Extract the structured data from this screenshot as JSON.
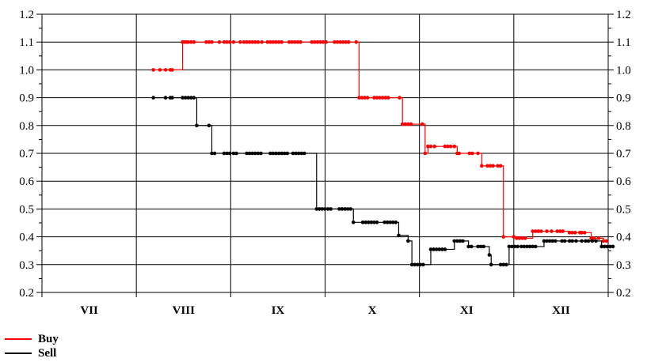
{
  "chart_data": {
    "type": "line",
    "title": "",
    "xlabel": "",
    "ylabel": "",
    "ylim": [
      0.2,
      1.2
    ],
    "yticks": [
      "0.2",
      "0.3",
      "0.4",
      "0.5",
      "0.6",
      "0.7",
      "0.8",
      "0.9",
      "1.0",
      "1.1",
      "1.2"
    ],
    "xlim": [
      0,
      6
    ],
    "categories": [
      "VII",
      "VIII",
      "IX",
      "X",
      "XI",
      "XII"
    ],
    "grid": true,
    "legend_position": "bottom-left",
    "series": [
      {
        "name": "Buy",
        "color": "#ff0000",
        "points": [
          [
            1.18,
            1.0
          ],
          [
            1.25,
            1.0
          ],
          [
            1.31,
            1.0
          ],
          [
            1.36,
            1.0
          ],
          [
            1.38,
            1.0
          ],
          [
            1.49,
            1.1
          ],
          [
            1.51,
            1.1
          ],
          [
            1.53,
            1.1
          ],
          [
            1.55,
            1.1
          ],
          [
            1.58,
            1.1
          ],
          [
            1.61,
            1.1
          ],
          [
            1.74,
            1.1
          ],
          [
            1.77,
            1.1
          ],
          [
            1.8,
            1.1
          ],
          [
            1.88,
            1.1
          ],
          [
            1.93,
            1.1
          ],
          [
            1.96,
            1.1
          ],
          [
            1.99,
            1.1
          ],
          [
            2.03,
            1.1
          ],
          [
            2.1,
            1.1
          ],
          [
            2.14,
            1.1
          ],
          [
            2.17,
            1.1
          ],
          [
            2.2,
            1.1
          ],
          [
            2.23,
            1.1
          ],
          [
            2.26,
            1.1
          ],
          [
            2.29,
            1.1
          ],
          [
            2.33,
            1.1
          ],
          [
            2.39,
            1.1
          ],
          [
            2.42,
            1.1
          ],
          [
            2.45,
            1.1
          ],
          [
            2.48,
            1.1
          ],
          [
            2.51,
            1.1
          ],
          [
            2.54,
            1.1
          ],
          [
            2.62,
            1.1
          ],
          [
            2.65,
            1.1
          ],
          [
            2.68,
            1.1
          ],
          [
            2.71,
            1.1
          ],
          [
            2.74,
            1.1
          ],
          [
            2.86,
            1.1
          ],
          [
            2.89,
            1.1
          ],
          [
            2.92,
            1.1
          ],
          [
            2.95,
            1.1
          ],
          [
            2.98,
            1.1
          ],
          [
            3.01,
            1.1
          ],
          [
            3.1,
            1.1
          ],
          [
            3.13,
            1.1
          ],
          [
            3.16,
            1.1
          ],
          [
            3.19,
            1.1
          ],
          [
            3.22,
            1.1
          ],
          [
            3.25,
            1.1
          ],
          [
            3.33,
            1.1
          ],
          [
            3.36,
            0.9
          ],
          [
            3.39,
            0.9
          ],
          [
            3.42,
            0.9
          ],
          [
            3.45,
            0.9
          ],
          [
            3.52,
            0.9
          ],
          [
            3.55,
            0.9
          ],
          [
            3.58,
            0.9
          ],
          [
            3.61,
            0.9
          ],
          [
            3.64,
            0.9
          ],
          [
            3.67,
            0.9
          ],
          [
            3.79,
            0.9
          ],
          [
            3.82,
            0.805
          ],
          [
            3.85,
            0.805
          ],
          [
            3.88,
            0.805
          ],
          [
            3.91,
            0.805
          ],
          [
            4.03,
            0.805
          ],
          [
            4.06,
            0.7
          ],
          [
            4.09,
            0.725
          ],
          [
            4.12,
            0.725
          ],
          [
            4.16,
            0.725
          ],
          [
            4.27,
            0.725
          ],
          [
            4.3,
            0.725
          ],
          [
            4.33,
            0.725
          ],
          [
            4.37,
            0.725
          ],
          [
            4.4,
            0.7
          ],
          [
            4.42,
            0.7
          ],
          [
            4.53,
            0.7
          ],
          [
            4.56,
            0.7
          ],
          [
            4.62,
            0.7
          ],
          [
            4.66,
            0.655
          ],
          [
            4.72,
            0.655
          ],
          [
            4.75,
            0.655
          ],
          [
            4.78,
            0.655
          ],
          [
            4.83,
            0.655
          ],
          [
            4.86,
            0.655
          ],
          [
            4.89,
            0.4
          ],
          [
            5.0,
            0.4
          ],
          [
            5.03,
            0.395
          ],
          [
            5.06,
            0.395
          ],
          [
            5.09,
            0.395
          ],
          [
            5.12,
            0.395
          ],
          [
            5.2,
            0.42
          ],
          [
            5.23,
            0.42
          ],
          [
            5.26,
            0.42
          ],
          [
            5.29,
            0.42
          ],
          [
            5.35,
            0.42
          ],
          [
            5.4,
            0.42
          ],
          [
            5.46,
            0.42
          ],
          [
            5.49,
            0.42
          ],
          [
            5.52,
            0.42
          ],
          [
            5.59,
            0.415
          ],
          [
            5.62,
            0.415
          ],
          [
            5.65,
            0.415
          ],
          [
            5.7,
            0.415
          ],
          [
            5.72,
            0.415
          ],
          [
            5.75,
            0.415
          ],
          [
            5.82,
            0.395
          ],
          [
            5.85,
            0.395
          ],
          [
            5.9,
            0.395
          ],
          [
            5.95,
            0.385
          ],
          [
            5.98,
            0.385
          ]
        ]
      },
      {
        "name": "Sell",
        "color": "#000000",
        "points": [
          [
            1.18,
            0.9
          ],
          [
            1.31,
            0.9
          ],
          [
            1.36,
            0.9
          ],
          [
            1.38,
            0.9
          ],
          [
            1.49,
            0.9
          ],
          [
            1.52,
            0.9
          ],
          [
            1.55,
            0.9
          ],
          [
            1.58,
            0.9
          ],
          [
            1.61,
            0.9
          ],
          [
            1.64,
            0.8
          ],
          [
            1.77,
            0.8
          ],
          [
            1.8,
            0.7
          ],
          [
            1.83,
            0.7
          ],
          [
            1.93,
            0.7
          ],
          [
            1.96,
            0.7
          ],
          [
            1.99,
            0.7
          ],
          [
            2.03,
            0.7
          ],
          [
            2.06,
            0.7
          ],
          [
            2.17,
            0.7
          ],
          [
            2.2,
            0.7
          ],
          [
            2.23,
            0.7
          ],
          [
            2.26,
            0.7
          ],
          [
            2.29,
            0.7
          ],
          [
            2.32,
            0.7
          ],
          [
            2.42,
            0.7
          ],
          [
            2.45,
            0.7
          ],
          [
            2.48,
            0.7
          ],
          [
            2.51,
            0.7
          ],
          [
            2.54,
            0.7
          ],
          [
            2.57,
            0.7
          ],
          [
            2.6,
            0.7
          ],
          [
            2.66,
            0.7
          ],
          [
            2.69,
            0.7
          ],
          [
            2.72,
            0.7
          ],
          [
            2.75,
            0.7
          ],
          [
            2.78,
            0.7
          ],
          [
            2.91,
            0.5
          ],
          [
            2.94,
            0.5
          ],
          [
            2.97,
            0.5
          ],
          [
            3.0,
            0.5
          ],
          [
            3.03,
            0.5
          ],
          [
            3.06,
            0.5
          ],
          [
            3.15,
            0.5
          ],
          [
            3.18,
            0.5
          ],
          [
            3.21,
            0.5
          ],
          [
            3.24,
            0.5
          ],
          [
            3.27,
            0.5
          ],
          [
            3.3,
            0.452
          ],
          [
            3.4,
            0.452
          ],
          [
            3.43,
            0.452
          ],
          [
            3.46,
            0.452
          ],
          [
            3.49,
            0.452
          ],
          [
            3.52,
            0.452
          ],
          [
            3.55,
            0.452
          ],
          [
            3.63,
            0.452
          ],
          [
            3.66,
            0.452
          ],
          [
            3.69,
            0.452
          ],
          [
            3.72,
            0.452
          ],
          [
            3.75,
            0.452
          ],
          [
            3.78,
            0.405
          ],
          [
            3.88,
            0.385
          ],
          [
            3.92,
            0.3
          ],
          [
            3.95,
            0.3
          ],
          [
            3.98,
            0.3
          ],
          [
            4.01,
            0.3
          ],
          [
            4.04,
            0.3
          ],
          [
            4.12,
            0.355
          ],
          [
            4.15,
            0.355
          ],
          [
            4.18,
            0.355
          ],
          [
            4.21,
            0.355
          ],
          [
            4.24,
            0.355
          ],
          [
            4.27,
            0.355
          ],
          [
            4.37,
            0.385
          ],
          [
            4.4,
            0.385
          ],
          [
            4.43,
            0.385
          ],
          [
            4.46,
            0.385
          ],
          [
            4.52,
            0.365
          ],
          [
            4.55,
            0.365
          ],
          [
            4.62,
            0.365
          ],
          [
            4.65,
            0.365
          ],
          [
            4.68,
            0.365
          ],
          [
            4.74,
            0.335
          ],
          [
            4.76,
            0.3
          ],
          [
            4.86,
            0.3
          ],
          [
            4.89,
            0.3
          ],
          [
            4.92,
            0.3
          ],
          [
            4.95,
            0.365
          ],
          [
            4.98,
            0.365
          ],
          [
            5.01,
            0.365
          ],
          [
            5.04,
            0.365
          ],
          [
            5.08,
            0.365
          ],
          [
            5.11,
            0.365
          ],
          [
            5.14,
            0.365
          ],
          [
            5.17,
            0.365
          ],
          [
            5.2,
            0.365
          ],
          [
            5.23,
            0.365
          ],
          [
            5.32,
            0.385
          ],
          [
            5.35,
            0.385
          ],
          [
            5.38,
            0.385
          ],
          [
            5.41,
            0.385
          ],
          [
            5.44,
            0.385
          ],
          [
            5.51,
            0.385
          ],
          [
            5.54,
            0.385
          ],
          [
            5.59,
            0.385
          ],
          [
            5.62,
            0.385
          ],
          [
            5.66,
            0.385
          ],
          [
            5.72,
            0.385
          ],
          [
            5.76,
            0.385
          ],
          [
            5.79,
            0.385
          ],
          [
            5.83,
            0.385
          ],
          [
            5.87,
            0.385
          ],
          [
            5.93,
            0.365
          ],
          [
            5.96,
            0.365
          ],
          [
            5.99,
            0.365
          ],
          [
            6.02,
            0.365
          ],
          [
            6.05,
            0.365
          ]
        ]
      }
    ]
  },
  "legend": {
    "items": [
      {
        "label": "Buy",
        "color": "#ff0000"
      },
      {
        "label": "Sell",
        "color": "#000000"
      }
    ]
  }
}
